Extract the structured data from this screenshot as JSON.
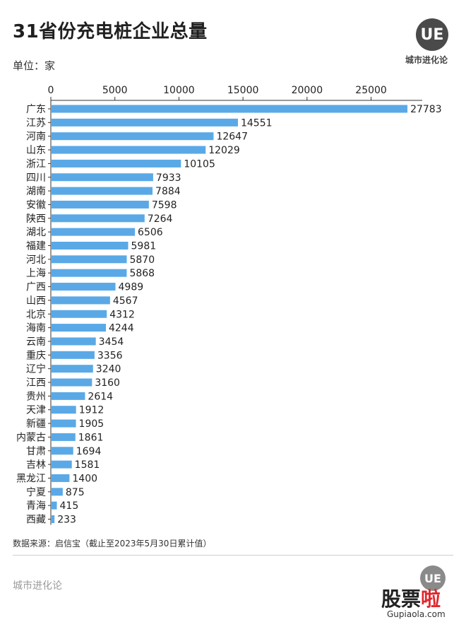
{
  "header": {
    "title": "31省份充电桩企业总量",
    "unit": "单位：家",
    "logo_text": "UE",
    "logo_label": "城市进化论"
  },
  "chart_data": {
    "type": "bar",
    "orientation": "horizontal",
    "title": "31省份充电桩企业总量",
    "xlim": [
      0,
      28000
    ],
    "xticks": [
      0,
      5000,
      10000,
      15000,
      20000,
      25000
    ],
    "xtick_labels": [
      "0",
      "5000",
      "10000",
      "15000",
      "20000",
      "25000"
    ],
    "grid": false,
    "bar_color": "#5aa9e6",
    "categories": [
      "广东",
      "江苏",
      "河南",
      "山东",
      "浙江",
      "四川",
      "湖南",
      "安徽",
      "陕西",
      "湖北",
      "福建",
      "河北",
      "上海",
      "广西",
      "山西",
      "北京",
      "海南",
      "云南",
      "重庆",
      "辽宁",
      "江西",
      "贵州",
      "天津",
      "新疆",
      "内蒙古",
      "甘肃",
      "吉林",
      "黑龙江",
      "宁夏",
      "青海",
      "西藏"
    ],
    "values": [
      27783,
      14551,
      12647,
      12029,
      10105,
      7933,
      7884,
      7598,
      7264,
      6506,
      5981,
      5870,
      5868,
      4989,
      4567,
      4312,
      4244,
      3454,
      3356,
      3240,
      3160,
      2614,
      1912,
      1905,
      1861,
      1694,
      1581,
      1400,
      875,
      415,
      233
    ]
  },
  "footer": {
    "source": "数据来源：启信宝（截止至2023年5月30日累计值）",
    "brand": "城市进化论",
    "logo_text": "UE",
    "stamp_main": "股票",
    "stamp_accent": "啦",
    "stamp_url": "Gupiaola.com"
  },
  "colors": {
    "bar": "#5aa9e6",
    "text": "#222222"
  }
}
